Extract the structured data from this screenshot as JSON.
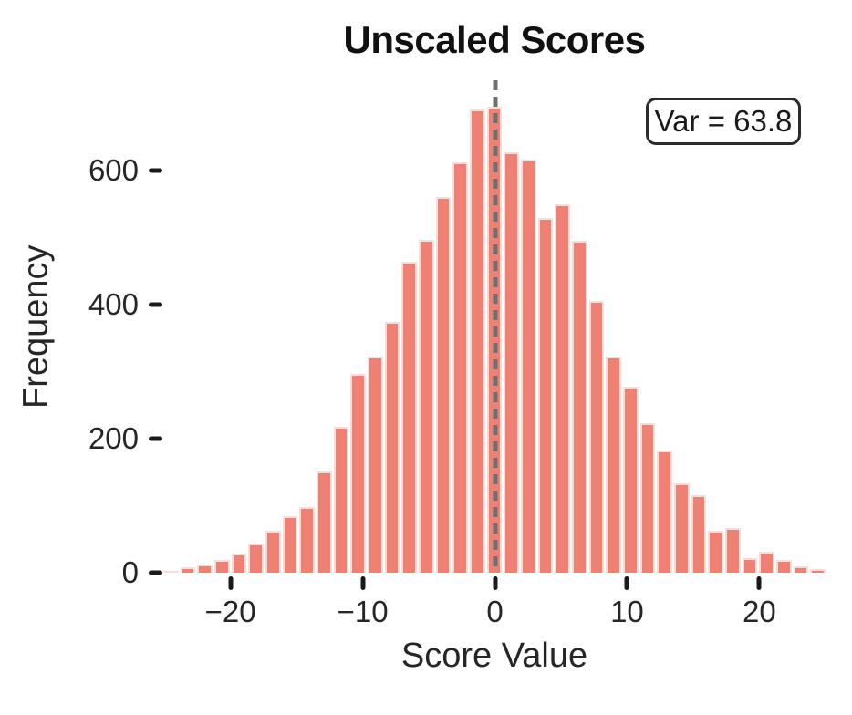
{
  "chart_data": {
    "type": "bar",
    "subtype": "histogram",
    "title": "Unscaled Scores",
    "xlabel": "Score Value",
    "ylabel": "Frequency",
    "annotation_text": "Var = 63.8",
    "xlim": [
      -25.15,
      25.08
    ],
    "ylim": [
      0,
      735
    ],
    "bin_start": -25.15,
    "bin_width": 1.288,
    "values": [
      3,
      8,
      12,
      19,
      29,
      44,
      63,
      84,
      98,
      151,
      218,
      297,
      323,
      375,
      464,
      497,
      561,
      613,
      691,
      696,
      627,
      616,
      529,
      550,
      496,
      406,
      322,
      278,
      223,
      183,
      134,
      116,
      63,
      67,
      22,
      31,
      19,
      10,
      5
    ],
    "vline_x": 0,
    "x_ticks": [
      -20,
      -10,
      0,
      10,
      20
    ],
    "x_tick_labels": [
      "−20",
      "−10",
      "0",
      "10",
      "20"
    ],
    "y_ticks": [
      0,
      200,
      400,
      600
    ],
    "y_tick_labels": [
      "0",
      "200",
      "400",
      "600"
    ],
    "grid": "off",
    "legend": "none",
    "colors": {
      "bar_fill": "#EE8173",
      "bar_edge": "#FBDCD6",
      "vline": "#6F6F6F",
      "tick_text": "#262626",
      "title_text": "#111111",
      "annotation_border": "#2B2B2B",
      "background": "#FFFFFF"
    }
  }
}
